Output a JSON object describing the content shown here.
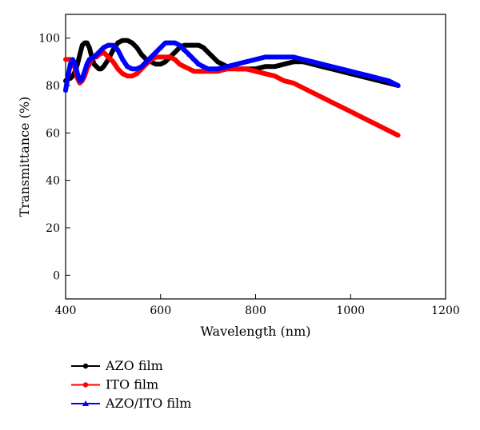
{
  "chart_data": {
    "type": "line",
    "xlabel": "Wavelength (nm)",
    "ylabel": "Transmittance (%)",
    "xlim": [
      400,
      1200
    ],
    "ylim": [
      -10,
      110
    ],
    "xticks": [
      400,
      600,
      800,
      1000,
      1200
    ],
    "yticks": [
      0,
      20,
      40,
      60,
      80,
      100
    ],
    "grid": false,
    "legend_position": "bottom-left, below plot",
    "series": [
      {
        "name": "AZO film",
        "color": "#000000",
        "marker": "circle",
        "x": [
          400,
          405,
          410,
          415,
          420,
          425,
          430,
          435,
          440,
          445,
          450,
          455,
          460,
          465,
          470,
          475,
          480,
          490,
          500,
          510,
          520,
          530,
          540,
          550,
          560,
          570,
          580,
          590,
          600,
          610,
          620,
          630,
          640,
          650,
          660,
          670,
          680,
          690,
          700,
          710,
          720,
          730,
          740,
          750,
          760,
          770,
          780,
          790,
          800,
          820,
          840,
          860,
          880,
          900,
          920,
          940,
          960,
          980,
          1000,
          1020,
          1040,
          1060,
          1080,
          1100
        ],
        "y": [
          82,
          83,
          83,
          84,
          86,
          89,
          93,
          97,
          98,
          98,
          96,
          92,
          89,
          88,
          87,
          87,
          88,
          91,
          95,
          98,
          99,
          99,
          98,
          96,
          93,
          91,
          90,
          89,
          89,
          90,
          92,
          94,
          96,
          97,
          97,
          97,
          97,
          96,
          94,
          92,
          90,
          89,
          88,
          88,
          87,
          87,
          87,
          87,
          87,
          88,
          88,
          89,
          90,
          90,
          89,
          88,
          87,
          86,
          85,
          84,
          83,
          82,
          81,
          80
        ]
      },
      {
        "name": "ITO film",
        "color": "#ff0000",
        "marker": "circle",
        "x": [
          400,
          405,
          410,
          415,
          420,
          425,
          430,
          435,
          440,
          445,
          450,
          455,
          460,
          465,
          470,
          480,
          490,
          500,
          510,
          520,
          530,
          540,
          550,
          560,
          570,
          580,
          590,
          600,
          610,
          620,
          630,
          640,
          650,
          660,
          670,
          680,
          700,
          720,
          740,
          760,
          780,
          800,
          820,
          840,
          860,
          880,
          900,
          920,
          940,
          960,
          980,
          1000,
          1020,
          1040,
          1060,
          1080,
          1100
        ],
        "y": [
          91,
          91,
          91,
          90,
          87,
          83,
          81,
          82,
          84,
          87,
          89,
          91,
          92,
          92,
          93,
          94,
          92,
          90,
          87,
          85,
          84,
          84,
          85,
          87,
          89,
          91,
          92,
          92,
          92,
          92,
          91,
          89,
          88,
          87,
          86,
          86,
          86,
          86,
          87,
          87,
          87,
          86,
          85,
          84,
          82,
          81,
          79,
          77,
          75,
          73,
          71,
          69,
          67,
          65,
          63,
          61,
          59
        ]
      },
      {
        "name": "AZO/ITO film",
        "color": "#0000ff",
        "marker": "triangle",
        "x": [
          400,
          405,
          410,
          415,
          420,
          425,
          430,
          435,
          440,
          445,
          450,
          460,
          470,
          480,
          490,
          500,
          510,
          520,
          530,
          540,
          550,
          560,
          570,
          580,
          590,
          600,
          610,
          620,
          630,
          640,
          650,
          660,
          670,
          680,
          690,
          700,
          720,
          740,
          760,
          780,
          800,
          820,
          840,
          860,
          880,
          900,
          920,
          940,
          960,
          980,
          1000,
          1020,
          1040,
          1060,
          1080,
          1100
        ],
        "y": [
          78,
          84,
          89,
          91,
          89,
          85,
          82,
          83,
          86,
          89,
          91,
          92,
          94,
          96,
          97,
          97,
          95,
          91,
          88,
          87,
          87,
          88,
          90,
          92,
          94,
          96,
          98,
          98,
          98,
          97,
          95,
          93,
          91,
          89,
          88,
          87,
          87,
          88,
          89,
          90,
          91,
          92,
          92,
          92,
          92,
          91,
          90,
          89,
          88,
          87,
          86,
          85,
          84,
          83,
          82,
          80
        ]
      }
    ]
  }
}
